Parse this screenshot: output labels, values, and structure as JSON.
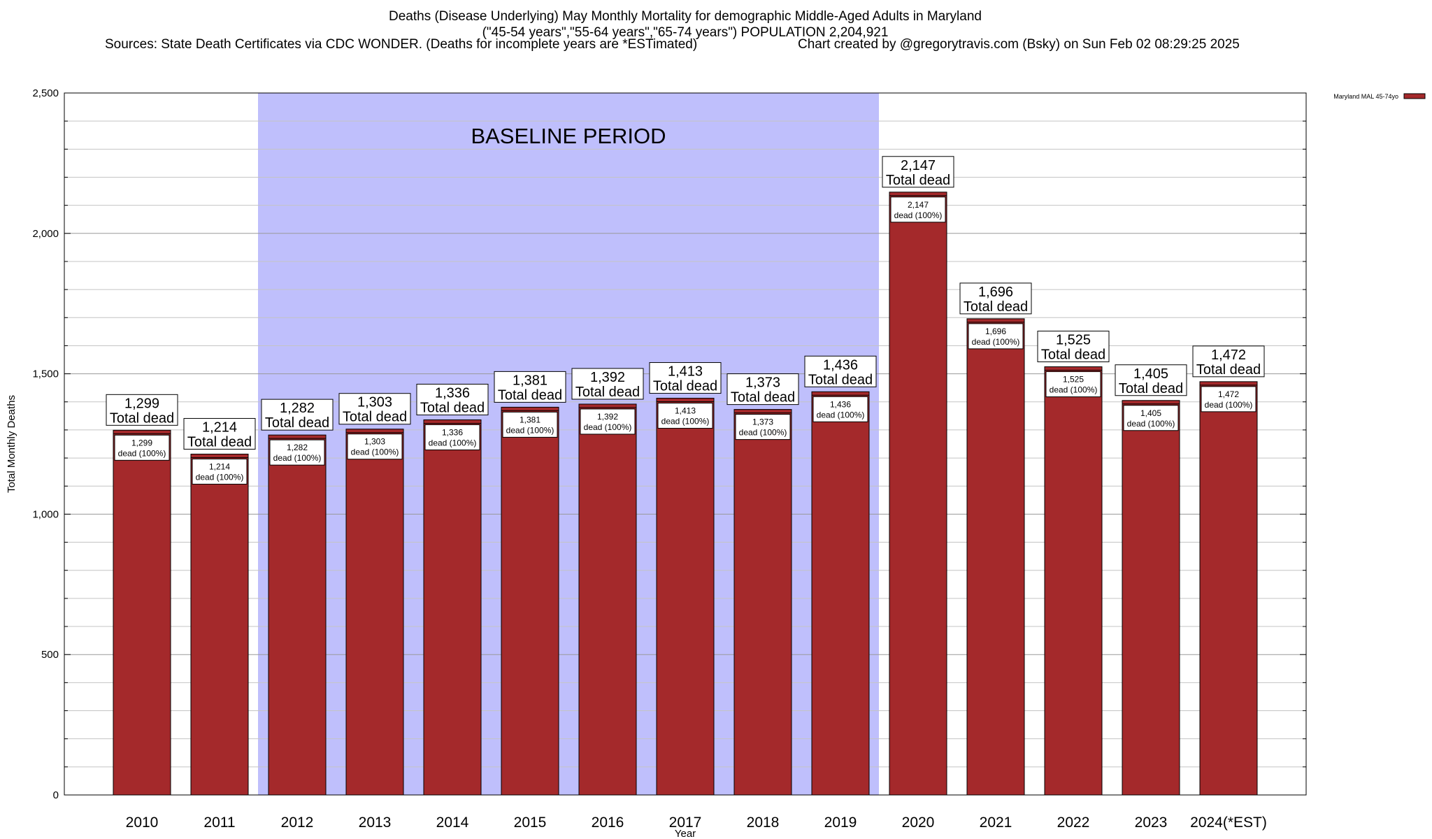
{
  "title": {
    "line1": "Deaths (Disease Underlying) May Monthly Mortality for demographic Middle-Aged Adults in Maryland",
    "line2": "(\"45-54 years\",\"55-64 years\",\"65-74 years\") POPULATION 2,204,921",
    "sources": "Sources: State Death Certificates via CDC WONDER. (Deaths for incomplete years are *ESTimated)",
    "credit": "Chart created by @gregorytravis.com (Bsky) on Sun Feb 02 08:29:25 2025"
  },
  "chart_data": {
    "type": "bar",
    "categories": [
      "2010",
      "2011",
      "2012",
      "2013",
      "2014",
      "2015",
      "2016",
      "2017",
      "2018",
      "2019",
      "2020",
      "2021",
      "2022",
      "2023",
      "2024(*EST)"
    ],
    "series": [
      {
        "name": "Maryland MAL 45-74yo",
        "values": [
          1299,
          1214,
          1282,
          1303,
          1336,
          1381,
          1392,
          1413,
          1373,
          1436,
          2147,
          1696,
          1525,
          1405,
          1472
        ],
        "color": "#a4292b"
      }
    ],
    "value_labels": [
      "1,299",
      "1,214",
      "1,282",
      "1,303",
      "1,336",
      "1,381",
      "1,392",
      "1,413",
      "1,373",
      "1,436",
      "2,147",
      "1,696",
      "1,525",
      "1,405",
      "1,472"
    ],
    "total_label_text": "Total dead",
    "inner_label_text": "dead (100%)",
    "xlabel": "Year",
    "ylabel": "Total Monthly Deaths",
    "ylim": [
      0,
      2500
    ],
    "y_major_ticks": [
      0,
      500,
      1000,
      1500,
      2000,
      2500
    ],
    "y_tick_labels": [
      "0",
      "500",
      "1,000",
      "1,500",
      "2,000",
      "2,500"
    ],
    "y_minor_step": 100,
    "grid": true,
    "legend_position": "top-right",
    "annotation": {
      "text": "BASELINE PERIOD",
      "x_start": "2012",
      "x_end": "2019",
      "color": "#bfbffc"
    }
  }
}
